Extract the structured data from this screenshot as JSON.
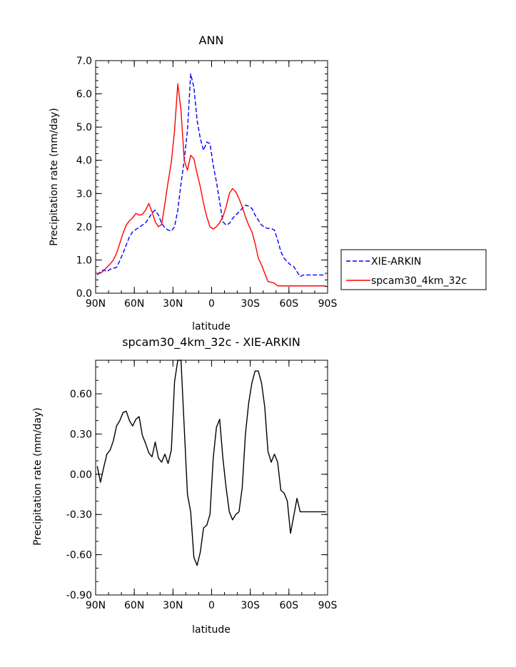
{
  "chart_data": [
    {
      "type": "line",
      "title": "ANN",
      "xlabel": "latitude",
      "ylabel": "Precipitation rate (mm/day)",
      "xlim": [
        -90,
        90
      ],
      "ylim": [
        0,
        7
      ],
      "x_ticks": [
        {
          "value": -90,
          "label": "90N"
        },
        {
          "value": -60,
          "label": "60N"
        },
        {
          "value": -30,
          "label": "30N"
        },
        {
          "value": 0,
          "label": "0"
        },
        {
          "value": 30,
          "label": "30S"
        },
        {
          "value": 60,
          "label": "60S"
        },
        {
          "value": 90,
          "label": "90S"
        }
      ],
      "y_ticks": [
        {
          "value": 0,
          "label": "0.0"
        },
        {
          "value": 1,
          "label": "1.0"
        },
        {
          "value": 2,
          "label": "2.0"
        },
        {
          "value": 3,
          "label": "3.0"
        },
        {
          "value": 4,
          "label": "4.0"
        },
        {
          "value": 5,
          "label": "5.0"
        },
        {
          "value": 6,
          "label": "6.0"
        },
        {
          "value": 7,
          "label": "7.0"
        }
      ],
      "legend": "right",
      "series": [
        {
          "name": "XIE-ARKIN",
          "color": "#0000ff",
          "dash": "dashed",
          "x": [
            -88.75,
            -86.25,
            -83.75,
            -81.25,
            -78.75,
            -76.25,
            -73.75,
            -71.25,
            -68.75,
            -66.25,
            -63.75,
            -61.25,
            -58.75,
            -56.25,
            -53.75,
            -51.25,
            -48.75,
            -46.25,
            -43.75,
            -41.25,
            -38.75,
            -36.25,
            -33.75,
            -31.25,
            -28.75,
            -26.25,
            -23.75,
            -21.25,
            -18.75,
            -16.25,
            -13.75,
            -11.25,
            -8.75,
            -6.25,
            -3.75,
            -1.25,
            1.25,
            3.75,
            6.25,
            8.75,
            11.25,
            13.75,
            16.25,
            18.75,
            21.25,
            23.75,
            26.25,
            28.75,
            31.25,
            33.75,
            36.25,
            38.75,
            41.25,
            43.75,
            46.25,
            48.75,
            51.25,
            53.75,
            56.25,
            58.75,
            61.25,
            63.75,
            66.25,
            68.75,
            71.25,
            73.75,
            76.25,
            78.75,
            81.25,
            83.75,
            86.25,
            88.75
          ],
          "values": [
            0.55,
            0.65,
            0.7,
            0.65,
            0.72,
            0.75,
            0.78,
            0.98,
            1.2,
            1.45,
            1.7,
            1.85,
            1.92,
            1.98,
            2.05,
            2.12,
            2.25,
            2.42,
            2.5,
            2.35,
            2.1,
            1.97,
            1.9,
            1.87,
            2.0,
            2.5,
            3.3,
            4.0,
            4.9,
            6.6,
            6.2,
            5.2,
            4.65,
            4.3,
            4.55,
            4.5,
            3.85,
            3.35,
            2.75,
            2.15,
            2.05,
            2.1,
            2.25,
            2.35,
            2.45,
            2.55,
            2.65,
            2.62,
            2.55,
            2.35,
            2.2,
            2.05,
            1.98,
            1.95,
            1.95,
            1.9,
            1.6,
            1.25,
            1.05,
            0.95,
            0.85,
            0.8,
            0.65,
            0.5,
            0.55,
            0.55,
            0.55,
            0.55,
            0.55,
            0.55,
            0.55,
            0.55
          ]
        },
        {
          "name": "spcam30_4km_32c",
          "color": "#ff0000",
          "dash": "solid",
          "x": [
            -88.75,
            -86.25,
            -83.75,
            -81.25,
            -78.75,
            -76.25,
            -73.75,
            -71.25,
            -68.75,
            -66.25,
            -63.75,
            -61.25,
            -58.75,
            -56.25,
            -53.75,
            -51.25,
            -48.75,
            -46.25,
            -43.75,
            -41.25,
            -38.75,
            -36.25,
            -33.75,
            -31.25,
            -28.75,
            -26.25,
            -23.75,
            -21.25,
            -18.75,
            -16.25,
            -13.75,
            -11.25,
            -8.75,
            -6.25,
            -3.75,
            -1.25,
            1.25,
            3.75,
            6.25,
            8.75,
            11.25,
            13.75,
            16.25,
            18.75,
            21.25,
            23.75,
            26.25,
            28.75,
            31.25,
            33.75,
            36.25,
            38.75,
            41.25,
            43.75,
            46.25,
            48.75,
            51.25,
            53.75,
            56.25,
            58.75,
            61.25,
            63.75,
            66.25,
            68.75,
            71.25,
            73.75,
            76.25,
            78.75,
            81.25,
            83.75,
            86.25,
            88.75
          ],
          "values": [
            0.6,
            0.6,
            0.68,
            0.78,
            0.88,
            1.0,
            1.2,
            1.5,
            1.8,
            2.05,
            2.18,
            2.27,
            2.4,
            2.35,
            2.37,
            2.5,
            2.7,
            2.45,
            2.15,
            2.0,
            2.07,
            2.7,
            3.35,
            3.95,
            4.9,
            6.3,
            5.5,
            4.0,
            3.7,
            4.15,
            4.05,
            3.6,
            3.2,
            2.7,
            2.3,
            2.0,
            1.93,
            2.0,
            2.12,
            2.3,
            2.6,
            3.0,
            3.15,
            3.05,
            2.85,
            2.6,
            2.3,
            2.05,
            1.85,
            1.5,
            1.05,
            0.85,
            0.6,
            0.35,
            0.33,
            0.3,
            0.22,
            0.22,
            0.22,
            0.22,
            0.22,
            0.22,
            0.22,
            0.22,
            0.22,
            0.22,
            0.22,
            0.22,
            0.22,
            0.22,
            0.22,
            0.22
          ]
        }
      ]
    },
    {
      "type": "line",
      "title": "spcam30_4km_32c - XIE-ARKIN",
      "xlabel": "latitude",
      "ylabel": "Precipitation rate (mm/day)",
      "xlim": [
        -90,
        90
      ],
      "ylim": [
        -0.9,
        0.85
      ],
      "x_ticks": [
        {
          "value": -90,
          "label": "90N"
        },
        {
          "value": -60,
          "label": "60N"
        },
        {
          "value": -30,
          "label": "30N"
        },
        {
          "value": 0,
          "label": "0"
        },
        {
          "value": 30,
          "label": "30S"
        },
        {
          "value": 60,
          "label": "60S"
        },
        {
          "value": 90,
          "label": "90S"
        }
      ],
      "y_ticks": [
        {
          "value": -0.9,
          "label": "-0.90"
        },
        {
          "value": -0.6,
          "label": "-0.60"
        },
        {
          "value": -0.3,
          "label": "-0.30"
        },
        {
          "value": 0.0,
          "label": "0.00"
        },
        {
          "value": 0.3,
          "label": "0.30"
        },
        {
          "value": 0.6,
          "label": "0.60"
        }
      ],
      "series": [
        {
          "color": "#000000",
          "dash": "solid",
          "x": [
            -88.75,
            -86.25,
            -83.75,
            -81.25,
            -78.75,
            -76.25,
            -73.75,
            -71.25,
            -68.75,
            -66.25,
            -63.75,
            -61.25,
            -58.75,
            -56.25,
            -53.75,
            -51.25,
            -48.75,
            -46.25,
            -43.75,
            -41.25,
            -38.75,
            -36.25,
            -33.75,
            -31.25,
            -28.75,
            -26.25,
            -23.75,
            -21.25,
            -18.75,
            -16.25,
            -13.75,
            -11.25,
            -8.75,
            -6.25,
            -3.75,
            -1.25,
            1.25,
            3.75,
            6.25,
            8.75,
            11.25,
            13.75,
            16.25,
            18.75,
            21.25,
            23.75,
            26.25,
            28.75,
            31.25,
            33.75,
            36.25,
            38.75,
            41.25,
            43.75,
            46.25,
            48.75,
            51.25,
            53.75,
            56.25,
            58.75,
            61.25,
            63.75,
            66.25,
            68.75,
            71.25,
            73.75,
            76.25,
            78.75,
            81.25,
            83.75,
            86.25,
            88.75
          ],
          "values": [
            0.06,
            -0.06,
            0.05,
            0.15,
            0.18,
            0.25,
            0.36,
            0.4,
            0.46,
            0.47,
            0.4,
            0.36,
            0.41,
            0.43,
            0.29,
            0.23,
            0.16,
            0.13,
            0.24,
            0.12,
            0.09,
            0.15,
            0.08,
            0.18,
            0.69,
            0.85,
            0.85,
            0.35,
            -0.15,
            -0.28,
            -0.62,
            -0.68,
            -0.58,
            -0.4,
            -0.38,
            -0.3,
            0.12,
            0.35,
            0.41,
            0.12,
            -0.1,
            -0.28,
            -0.34,
            -0.3,
            -0.28,
            -0.1,
            0.3,
            0.53,
            0.68,
            0.77,
            0.77,
            0.68,
            0.5,
            0.17,
            0.09,
            0.15,
            0.09,
            -0.12,
            -0.14,
            -0.2,
            -0.44,
            -0.31,
            -0.18,
            -0.28,
            -0.28,
            -0.28,
            -0.28,
            -0.28,
            -0.28,
            -0.28,
            -0.28,
            -0.28
          ]
        }
      ]
    }
  ]
}
